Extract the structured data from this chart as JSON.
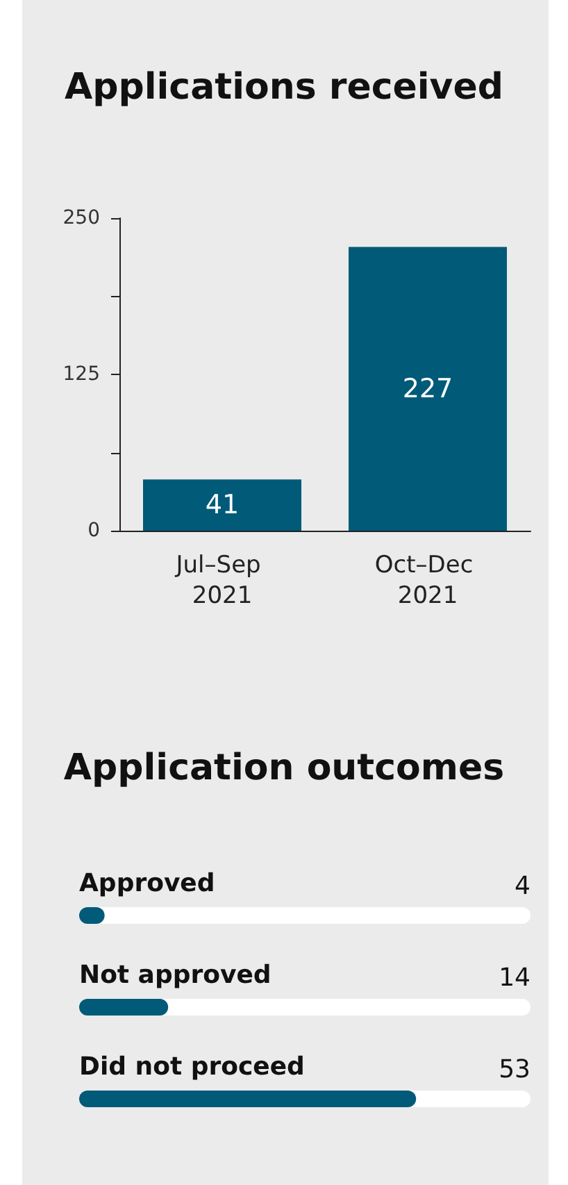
{
  "chart_data": [
    {
      "type": "bar",
      "title": "Applications received",
      "categories": [
        "Jul–Sep 2021",
        "Oct–Dec 2021"
      ],
      "values": [
        41,
        227
      ],
      "color": "#005a78",
      "ylim": [
        0,
        250
      ],
      "yticks": [
        0,
        {
          "value": 62.5,
          "label": null
        },
        125,
        {
          "value": 187.5,
          "label": null
        },
        250
      ],
      "grid": false,
      "data_labels": true
    },
    {
      "type": "bar",
      "orientation": "horizontal",
      "title": "Application outcomes",
      "categories": [
        "Approved",
        "Not approved",
        "Did not proceed"
      ],
      "values": [
        4,
        14,
        53
      ],
      "color": "#005a78",
      "xlim": [
        0,
        71
      ],
      "data_labels": true
    }
  ]
}
